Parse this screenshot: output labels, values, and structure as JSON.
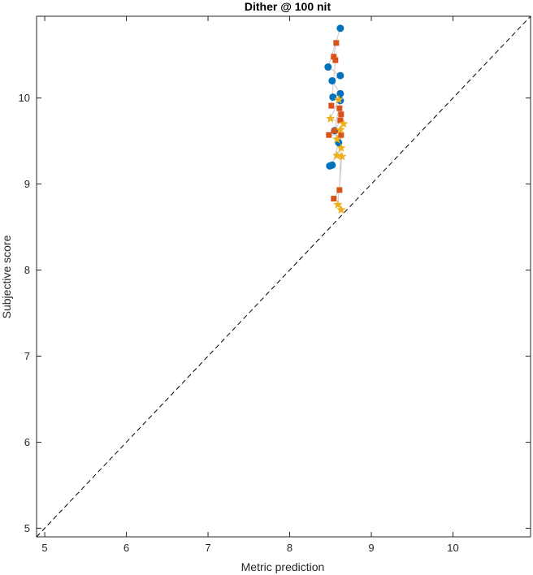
{
  "chart_data": {
    "type": "scatter",
    "title": "Dither @ 100 nit",
    "xlabel": "Metric prediction",
    "ylabel": "Subjective score",
    "xlim": [
      4.9,
      10.95
    ],
    "ylim": [
      4.9,
      10.95
    ],
    "xticks": [
      5,
      6,
      7,
      8,
      9,
      10
    ],
    "yticks": [
      5,
      6,
      7,
      8,
      9,
      10
    ],
    "grid": false,
    "legend": "none",
    "reference_line": {
      "style": "dashed",
      "from": [
        4.9,
        4.9
      ],
      "to": [
        10.95,
        10.95
      ],
      "color": "#000000"
    },
    "series": [
      {
        "marker": "circle",
        "color": "#0072BD",
        "points": [
          [
            8.62,
            10.81
          ],
          [
            8.47,
            10.36
          ],
          [
            8.62,
            10.26
          ],
          [
            8.52,
            10.2
          ],
          [
            8.62,
            10.05
          ],
          [
            8.53,
            10.01
          ],
          [
            8.62,
            9.97
          ],
          [
            8.55,
            9.62
          ],
          [
            8.6,
            9.48
          ],
          [
            8.52,
            9.22
          ],
          [
            8.49,
            9.21
          ]
        ]
      },
      {
        "marker": "square",
        "color": "#D95319",
        "points": [
          [
            8.57,
            10.64
          ],
          [
            8.54,
            10.48
          ],
          [
            8.56,
            10.44
          ],
          [
            8.51,
            9.91
          ],
          [
            8.61,
            9.88
          ],
          [
            8.63,
            9.81
          ],
          [
            8.62,
            9.74
          ],
          [
            8.55,
            9.62
          ],
          [
            8.48,
            9.57
          ],
          [
            8.63,
            9.57
          ],
          [
            8.61,
            8.93
          ],
          [
            8.54,
            8.83
          ]
        ]
      },
      {
        "marker": "star",
        "color": "#EDB120",
        "points": [
          [
            8.6,
            9.98
          ],
          [
            8.5,
            9.76
          ],
          [
            8.66,
            9.7
          ],
          [
            8.62,
            9.63
          ],
          [
            8.58,
            9.52
          ],
          [
            8.63,
            9.42
          ],
          [
            8.58,
            9.33
          ],
          [
            8.64,
            9.32
          ],
          [
            8.59,
            8.76
          ],
          [
            8.63,
            8.7
          ]
        ]
      }
    ],
    "connector_color": "#C8C8C8"
  }
}
